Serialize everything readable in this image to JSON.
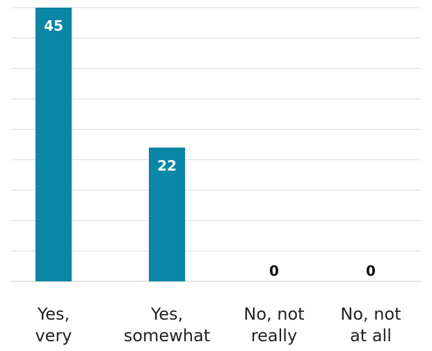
{
  "chart_data": {
    "type": "bar",
    "categories": [
      [
        "Yes,",
        "very"
      ],
      [
        "Yes,",
        "somewhat"
      ],
      [
        "No, not",
        "really"
      ],
      [
        "No, not",
        "at all"
      ]
    ],
    "values": [
      45,
      22,
      0,
      0
    ],
    "ylim": [
      0,
      45
    ],
    "grid": true,
    "bar_color": "#0a86a6",
    "title": "",
    "xlabel": "",
    "ylabel": ""
  }
}
